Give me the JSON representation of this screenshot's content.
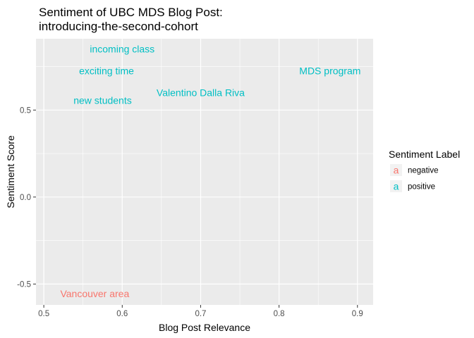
{
  "chart_data": {
    "type": "scatter",
    "title_lines": [
      "Sentiment of UBC MDS Blog Post:",
      "introducing-the-second-cohort"
    ],
    "xlabel": "Blog Post Relevance",
    "ylabel": "Sentiment Score",
    "xlim": [
      0.49,
      0.92
    ],
    "ylim": [
      -0.62,
      0.91
    ],
    "x_ticks": [
      {
        "v": 0.5,
        "label": "0.5"
      },
      {
        "v": 0.6,
        "label": "0.6"
      },
      {
        "v": 0.7,
        "label": "0.7"
      },
      {
        "v": 0.8,
        "label": "0.8"
      },
      {
        "v": 0.9,
        "label": "0.9"
      }
    ],
    "y_ticks": [
      {
        "v": -0.5,
        "label": "-0.5"
      },
      {
        "v": 0.0,
        "label": "0.0"
      },
      {
        "v": 0.5,
        "label": "0.5"
      }
    ],
    "legend": {
      "title": "Sentiment Label",
      "key_glyph": "a",
      "entries": [
        {
          "label": "negative",
          "color": "#F8766D"
        },
        {
          "label": "positive",
          "color": "#00BFC4"
        }
      ]
    },
    "points": [
      {
        "label": "incoming class",
        "x": 0.6,
        "y": 0.85,
        "sentiment": "positive"
      },
      {
        "label": "exciting time",
        "x": 0.58,
        "y": 0.725,
        "sentiment": "positive"
      },
      {
        "label": "MDS program",
        "x": 0.865,
        "y": 0.725,
        "sentiment": "positive"
      },
      {
        "label": "Valentino Dalla Riva",
        "x": 0.7,
        "y": 0.6,
        "sentiment": "positive"
      },
      {
        "label": "new students",
        "x": 0.575,
        "y": 0.555,
        "sentiment": "positive"
      },
      {
        "label": "Vancouver area",
        "x": 0.565,
        "y": -0.555,
        "sentiment": "negative"
      }
    ],
    "colors": {
      "panel_bg": "#EBEBEB",
      "grid": "#FFFFFF",
      "negative": "#F8766D",
      "positive": "#00BFC4"
    }
  }
}
